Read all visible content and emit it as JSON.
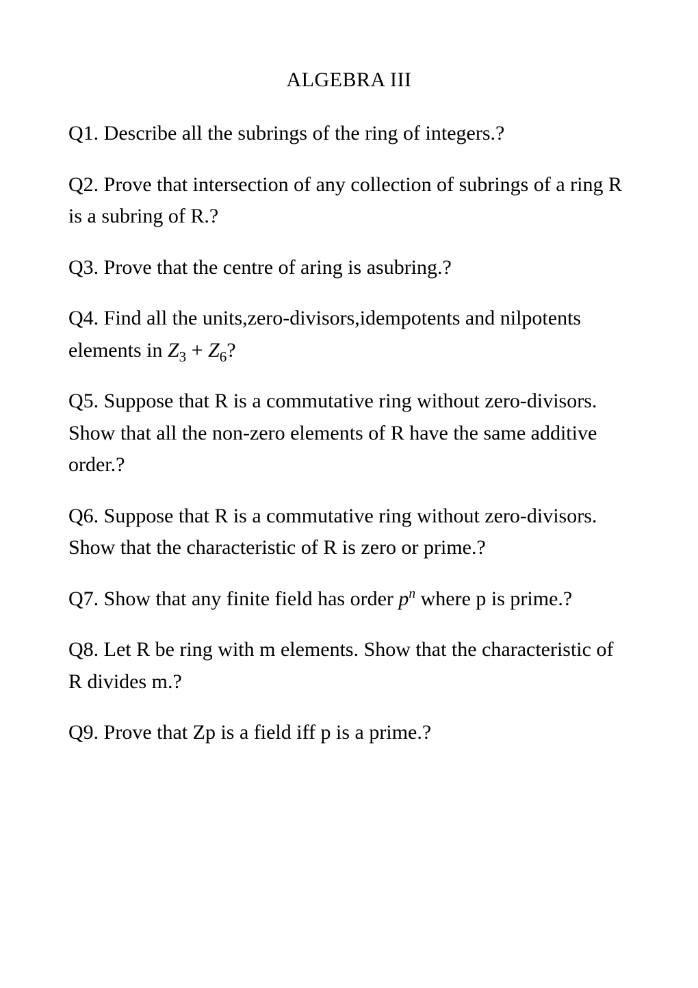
{
  "title": "ALGEBRA III",
  "questions": {
    "q1": "Q1. Describe all the subrings of the ring of integers.?",
    "q2": "Q2. Prove that intersection of any collection of subrings of a ring R is a subring of R.?",
    "q3": "Q3. Prove that the centre of aring is asubring.?",
    "q4_pre": "Q4. Find all the units,zero-divisors,idempotents and nilpotents elements in ",
    "q4_math_z": "Z",
    "q4_math_sub1": "3",
    "q4_math_plus": " + ",
    "q4_math_sub2": "6",
    "q4_post": "?",
    "q5": "Q5. Suppose that R is a commutative ring without zero-divisors. Show that all the non-zero elements of R have the same additive order.?",
    "q6": "Q6. Suppose that R is a commutative ring without zero-divisors. Show that the characteristic of R is zero or prime.?",
    "q7_pre": "Q7. Show that any finite field has order ",
    "q7_math_p": "p",
    "q7_math_n": "n",
    "q7_post": " where p is prime.?",
    "q8": "Q8. Let R be ring with m elements. Show that the characteristic of R divides m.?",
    "q9": "Q9. Prove that Zp is a field iff p is a prime.?"
  }
}
